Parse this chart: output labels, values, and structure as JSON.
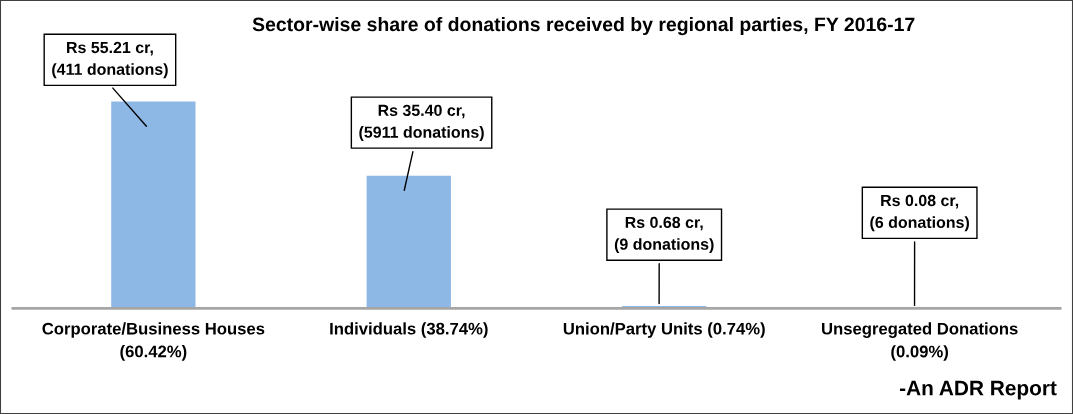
{
  "chart_data": {
    "type": "bar",
    "title": "Sector-wise share of donations received by regional parties, FY 2016-17",
    "categories": [
      "Corporate/Business Houses\n(60.42%)",
      "Individuals (38.74%)",
      "Union/Party Units (0.74%)",
      "Unsegregated Donations\n(0.09%)"
    ],
    "values": [
      55.21,
      35.4,
      0.68,
      0.08
    ],
    "color": "#8db8e6",
    "value_labels": [
      "Rs 55.21 cr,\n(411 donations)",
      "Rs 35.40 cr,\n(5911 donations)",
      "Rs 0.68 cr,\n(9 donations)",
      "Rs 0.08 cr,\n(6 donations)"
    ],
    "annotations": [
      "-An ADR Report"
    ],
    "grid": false
  }
}
